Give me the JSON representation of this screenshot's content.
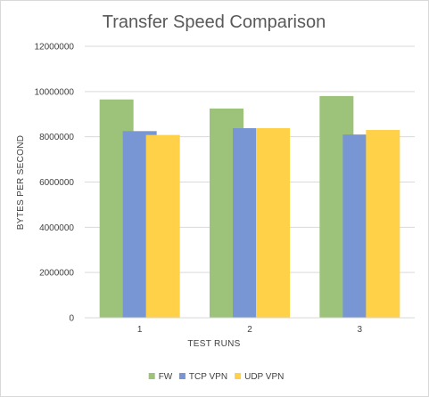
{
  "chart_data": {
    "type": "bar",
    "title": "Transfer Speed Comparison",
    "xlabel": "TEST RUNS",
    "ylabel": "BYTES PER SECOND",
    "categories": [
      "1",
      "2",
      "3"
    ],
    "ylim": [
      0,
      12000000
    ],
    "yticks": [
      "0",
      "2000000",
      "4000000",
      "6000000",
      "8000000",
      "10000000",
      "12000000"
    ],
    "grid": true,
    "legend": "bottom",
    "series": [
      {
        "name": "FW",
        "color": "#9dc37a",
        "values": [
          9650000,
          9250000,
          9800000
        ]
      },
      {
        "name": "TCP VPN",
        "color": "#7796d3",
        "values": [
          8250000,
          8380000,
          8100000
        ]
      },
      {
        "name": "UDP VPN",
        "color": "#fed149",
        "values": [
          8080000,
          8380000,
          8300000
        ]
      }
    ]
  }
}
